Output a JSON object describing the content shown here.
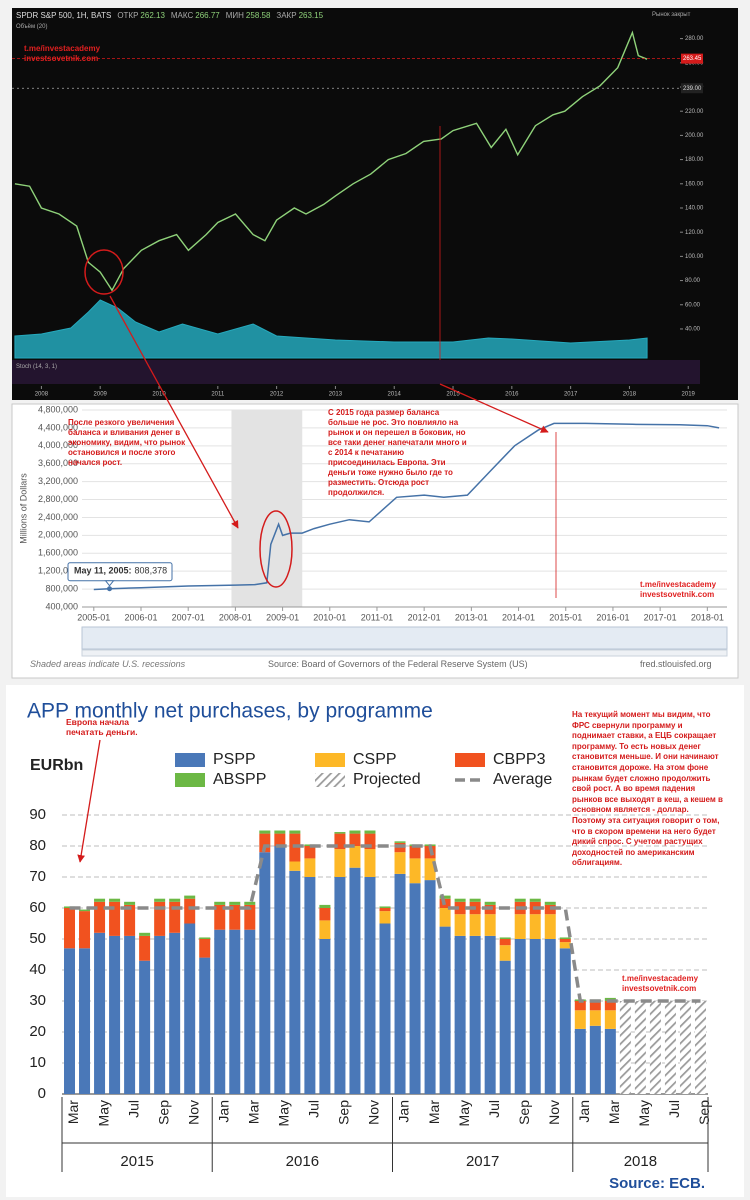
{
  "chart_data": [
    {
      "type": "line",
      "ticker": "SPDR S&P 500, 1H, BATS",
      "ohlc": [
        {
          "label": "ОТКР",
          "value": 262.13
        },
        {
          "label": "МАКС",
          "value": 266.77
        },
        {
          "label": "МИН",
          "value": 258.58
        },
        {
          "label": "ЗАКР",
          "value": 263.15
        }
      ],
      "status": "Рынок закрыт",
      "volume_label": "Объём (20)",
      "indicator_label": "Stoch (14, 3, 1)",
      "watermarks": [
        "t.me/investacademy",
        "investsovetnik.com"
      ],
      "xlim": [
        2007.5,
        2019.2
      ],
      "xticks": [
        2008,
        2009,
        2010,
        2011,
        2012,
        2013,
        2014,
        2015,
        2016,
        2017,
        2018,
        2019
      ],
      "ylim": [
        16,
        302
      ],
      "yticks": [
        {
          "value": 40,
          "label": "40.00"
        },
        {
          "value": 60,
          "label": "60.00"
        },
        {
          "value": 80,
          "label": "80.00"
        },
        {
          "value": 100,
          "label": "100.00"
        },
        {
          "value": 120,
          "label": "120.00"
        },
        {
          "value": 140,
          "label": "140.00"
        },
        {
          "value": 160,
          "label": "160.00"
        },
        {
          "value": 180,
          "label": "180.00"
        },
        {
          "value": 200,
          "label": "200.00"
        },
        {
          "value": 220,
          "label": "220.00"
        },
        {
          "value": 240,
          "label": "240.00"
        },
        {
          "value": 260,
          "label": "260.00"
        },
        {
          "value": 280,
          "label": "280.00"
        }
      ],
      "y2lim": [
        0,
        500
      ],
      "last_price": 263.45,
      "level": {
        "value": 239,
        "label": "239.00"
      },
      "series": [
        {
          "color": "#8fd27a",
          "x": [
            2007.55,
            2007.8,
            2008.0,
            2008.3,
            2008.6,
            2008.8,
            2009.0,
            2009.2,
            2009.4,
            2009.7,
            2010.0,
            2010.3,
            2010.5,
            2010.8,
            2011.0,
            2011.3,
            2011.6,
            2011.8,
            2012.0,
            2012.3,
            2012.5,
            2012.8,
            2013.0,
            2013.3,
            2013.6,
            2013.9,
            2014.2,
            2014.5,
            2014.8,
            2015.0,
            2015.4,
            2015.65,
            2015.9,
            2016.1,
            2016.4,
            2016.7,
            2016.9,
            2017.2,
            2017.5,
            2017.8,
            2018.05,
            2018.15,
            2018.3
          ],
          "values": [
            160,
            158,
            140,
            135,
            125,
            95,
            87,
            72,
            90,
            105,
            113,
            118,
            105,
            118,
            128,
            135,
            118,
            113,
            130,
            140,
            135,
            143,
            150,
            160,
            168,
            180,
            185,
            195,
            197,
            204,
            210,
            190,
            205,
            184,
            208,
            217,
            220,
            232,
            241,
            256,
            285,
            266,
            263
          ]
        },
        {
          "color": "#25a9bd",
          "axis": "y2",
          "x": [
            2007.55,
            2008.0,
            2008.5,
            2008.8,
            2009.0,
            2009.3,
            2009.6,
            2010.0,
            2010.4,
            2011.0,
            2011.6,
            2012.0,
            2013.0,
            2014.0,
            2015.0,
            2015.6,
            2016.0,
            2017.0,
            2018.0,
            2018.3
          ],
          "values": [
            110,
            120,
            150,
            230,
            290,
            250,
            180,
            130,
            170,
            120,
            170,
            110,
            90,
            80,
            80,
            100,
            95,
            75,
            90,
            100
          ]
        }
      ]
    },
    {
      "type": "line",
      "y_label": "Millions of Dollars",
      "xlim": [
        "2004-10",
        "2018-06"
      ],
      "xticks": [
        "2005-01",
        "2006-01",
        "2007-01",
        "2008-01",
        "2009-01",
        "2010-01",
        "2011-01",
        "2012-01",
        "2013-01",
        "2014-01",
        "2015-01",
        "2016-01",
        "2017-01",
        "2018-01"
      ],
      "ylim": [
        400000,
        4800000
      ],
      "yticks": [
        {
          "value": 400000,
          "label": "400,000"
        },
        {
          "value": 800000,
          "label": "800,000"
        },
        {
          "value": 1200000,
          "label": "1,200,000"
        },
        {
          "value": 1600000,
          "label": "1,600,000"
        },
        {
          "value": 2000000,
          "label": "2,000,000"
        },
        {
          "value": 2400000,
          "label": "2,400,000"
        },
        {
          "value": 2800000,
          "label": "2,800,000"
        },
        {
          "value": 3200000,
          "label": "3,200,000"
        },
        {
          "value": 3600000,
          "label": "3,600,000"
        },
        {
          "value": 4000000,
          "label": "4,000,000"
        },
        {
          "value": 4400000,
          "label": "4,400,000"
        },
        {
          "value": 4800000,
          "label": "4,800,000"
        }
      ],
      "grid": true,
      "color": "#4572a7",
      "x": [
        "2005-01",
        "2005-05",
        "2006-01",
        "2007-01",
        "2007-08",
        "2008-01",
        "2008-06",
        "2008-09",
        "2008-10",
        "2008-12",
        "2009-01",
        "2009-03",
        "2009-06",
        "2009-09",
        "2010-01",
        "2010-06",
        "2010-11",
        "2011-06",
        "2012-01",
        "2012-06",
        "2012-12",
        "2013-06",
        "2013-12",
        "2014-06",
        "2014-10",
        "2015-06",
        "2016-06",
        "2017-06",
        "2018-01",
        "2018-04"
      ],
      "values": [
        790000,
        808378,
        830000,
        870000,
        880000,
        890000,
        900000,
        940000,
        1800000,
        2250000,
        2000000,
        2050000,
        2050000,
        2150000,
        2250000,
        2350000,
        2300000,
        2850000,
        2900000,
        2850000,
        2900000,
        3450000,
        4000000,
        4350000,
        4500000,
        4500000,
        4480000,
        4470000,
        4450000,
        4400000
      ],
      "recession": [
        "2007-12",
        "2009-06"
      ],
      "tooltip": {
        "x": "2005-05",
        "date": "May 11, 2005:",
        "value": 808378,
        "value_label": "808,378"
      },
      "note": "Shaded areas indicate U.S. recessions",
      "source": "Source: Board of Governors of the Federal Reserve System (US)",
      "site": "fred.stlouisfed.org",
      "annotations": [
        "После резкого увеличения баланса и вливания денег в экономику, видим, что рынок остановился и после этого начался рост.",
        "С 2015 года размер баланса больше не рос. Это повлияло на рынок и он перешел в боковик, но все таки денег напечатали много и с 2014 к печатанию присоединилась Европа. Эти деньги тоже нужно было где то разместить. Отсюда рост продолжился."
      ],
      "watermarks": [
        "t.me/investacademy",
        "investsovetnik.com"
      ]
    },
    {
      "type": "bar",
      "title": "APP monthly net purchases, by programme",
      "unit_label": "EURbn",
      "ylim": [
        0,
        90
      ],
      "yticks": [
        0,
        10,
        20,
        30,
        40,
        50,
        60,
        70,
        80,
        90
      ],
      "grid": true,
      "groups": [
        {
          "label": "2015",
          "categories": [
            "Mar",
            null,
            "May",
            null,
            "Jul",
            null,
            "Sep",
            null,
            "Nov",
            null
          ]
        },
        {
          "label": "2016",
          "categories": [
            "Jan",
            null,
            "Mar",
            null,
            "May",
            null,
            "Jul",
            null,
            "Sep",
            null,
            "Nov",
            null
          ]
        },
        {
          "label": "2017",
          "categories": [
            "Jan",
            null,
            "Mar",
            null,
            "May",
            null,
            "Jul",
            null,
            "Sep",
            null,
            "Nov",
            null
          ]
        },
        {
          "label": "2018",
          "categories": [
            "Jan",
            null,
            "Mar",
            null,
            "May",
            null,
            "Jul",
            null,
            "Sep"
          ]
        }
      ],
      "series": [
        {
          "name": "PSPP",
          "color": "#4a78b8",
          "values": [
            47,
            47,
            52,
            51,
            51,
            43,
            51,
            52,
            55,
            44,
            53,
            53,
            53,
            78,
            80,
            72,
            70,
            50,
            70,
            73,
            70,
            55,
            71,
            68,
            69,
            54,
            51,
            51,
            51,
            43,
            50,
            50,
            50,
            47,
            21,
            22,
            21,
            null,
            null,
            null,
            null,
            null,
            null
          ]
        },
        {
          "name": "CSPP",
          "color": "#fdb827",
          "values": [
            null,
            null,
            null,
            null,
            null,
            null,
            null,
            null,
            null,
            null,
            null,
            null,
            null,
            null,
            null,
            3,
            6,
            6,
            9,
            7,
            9,
            4,
            7,
            8,
            7,
            6,
            7,
            7,
            7,
            5,
            8,
            8,
            8,
            2,
            6,
            5,
            6,
            null,
            null,
            null,
            null,
            null,
            null
          ]
        },
        {
          "name": "CBPP3",
          "color": "#f1521f",
          "values": [
            13,
            12,
            10,
            11,
            10,
            8,
            11,
            10,
            8,
            6,
            8,
            8,
            8,
            6,
            4,
            9,
            4,
            4,
            5,
            4,
            5,
            1,
            3,
            4,
            4,
            3,
            4,
            4,
            3,
            2,
            4,
            4,
            3,
            1,
            3,
            3,
            3,
            null,
            null,
            null,
            null,
            null,
            null
          ]
        },
        {
          "name": "ABSPP",
          "color": "#6cb845",
          "values": [
            0.5,
            0.5,
            1,
            1,
            1,
            1,
            1,
            1,
            1,
            0.5,
            1,
            1,
            1,
            1,
            1,
            1,
            0.5,
            1,
            0.5,
            1,
            1,
            0.5,
            0.5,
            0.5,
            0.5,
            1,
            1,
            1,
            1,
            0.5,
            1,
            1,
            1,
            0.5,
            0.5,
            0.5,
            1,
            null,
            null,
            null,
            null,
            null,
            null
          ]
        },
        {
          "name": "Projected",
          "color": "#9a9a9a",
          "pattern": "hatched",
          "values": [
            null,
            null,
            null,
            null,
            null,
            null,
            null,
            null,
            null,
            null,
            null,
            null,
            null,
            null,
            null,
            null,
            null,
            null,
            null,
            null,
            null,
            null,
            null,
            null,
            null,
            null,
            null,
            null,
            null,
            null,
            null,
            null,
            null,
            null,
            null,
            null,
            null,
            30,
            30,
            30,
            30,
            30,
            30
          ]
        },
        {
          "name": "Average",
          "color": "#8a8a8a",
          "type": "line",
          "dash": true,
          "values": [
            60,
            60,
            60,
            60,
            60,
            60,
            60,
            60,
            60,
            60,
            60,
            60,
            60,
            80,
            80,
            80,
            80,
            80,
            80,
            80,
            80,
            80,
            80,
            80,
            80,
            60,
            60,
            60,
            60,
            60,
            60,
            60,
            60,
            60,
            30,
            30,
            30,
            30,
            30,
            30,
            30,
            30,
            30
          ]
        }
      ],
      "source": "Source: ECB.",
      "annotations": [
        "Европа начала печатать деньги.",
        "На текущий момент мы видим, что ФРС свернули программу и поднимает ставки, а ЕЦБ сокращает программу. То есть новых денег становится меньше. И они начинают становится дороже. На этом фоне рынкам будет сложно продолжить свой рост. А во время падения рынков все выходят в кеш, а кешем в основном является - доллар. Поэтому эта ситуация говорит о том, что в скором времени на него будет дикий спрос. С учетом растущих доходностей по американским облигациям."
      ],
      "watermarks": [
        "t.me/investacademy",
        "investsovetnik.com"
      ]
    }
  ]
}
